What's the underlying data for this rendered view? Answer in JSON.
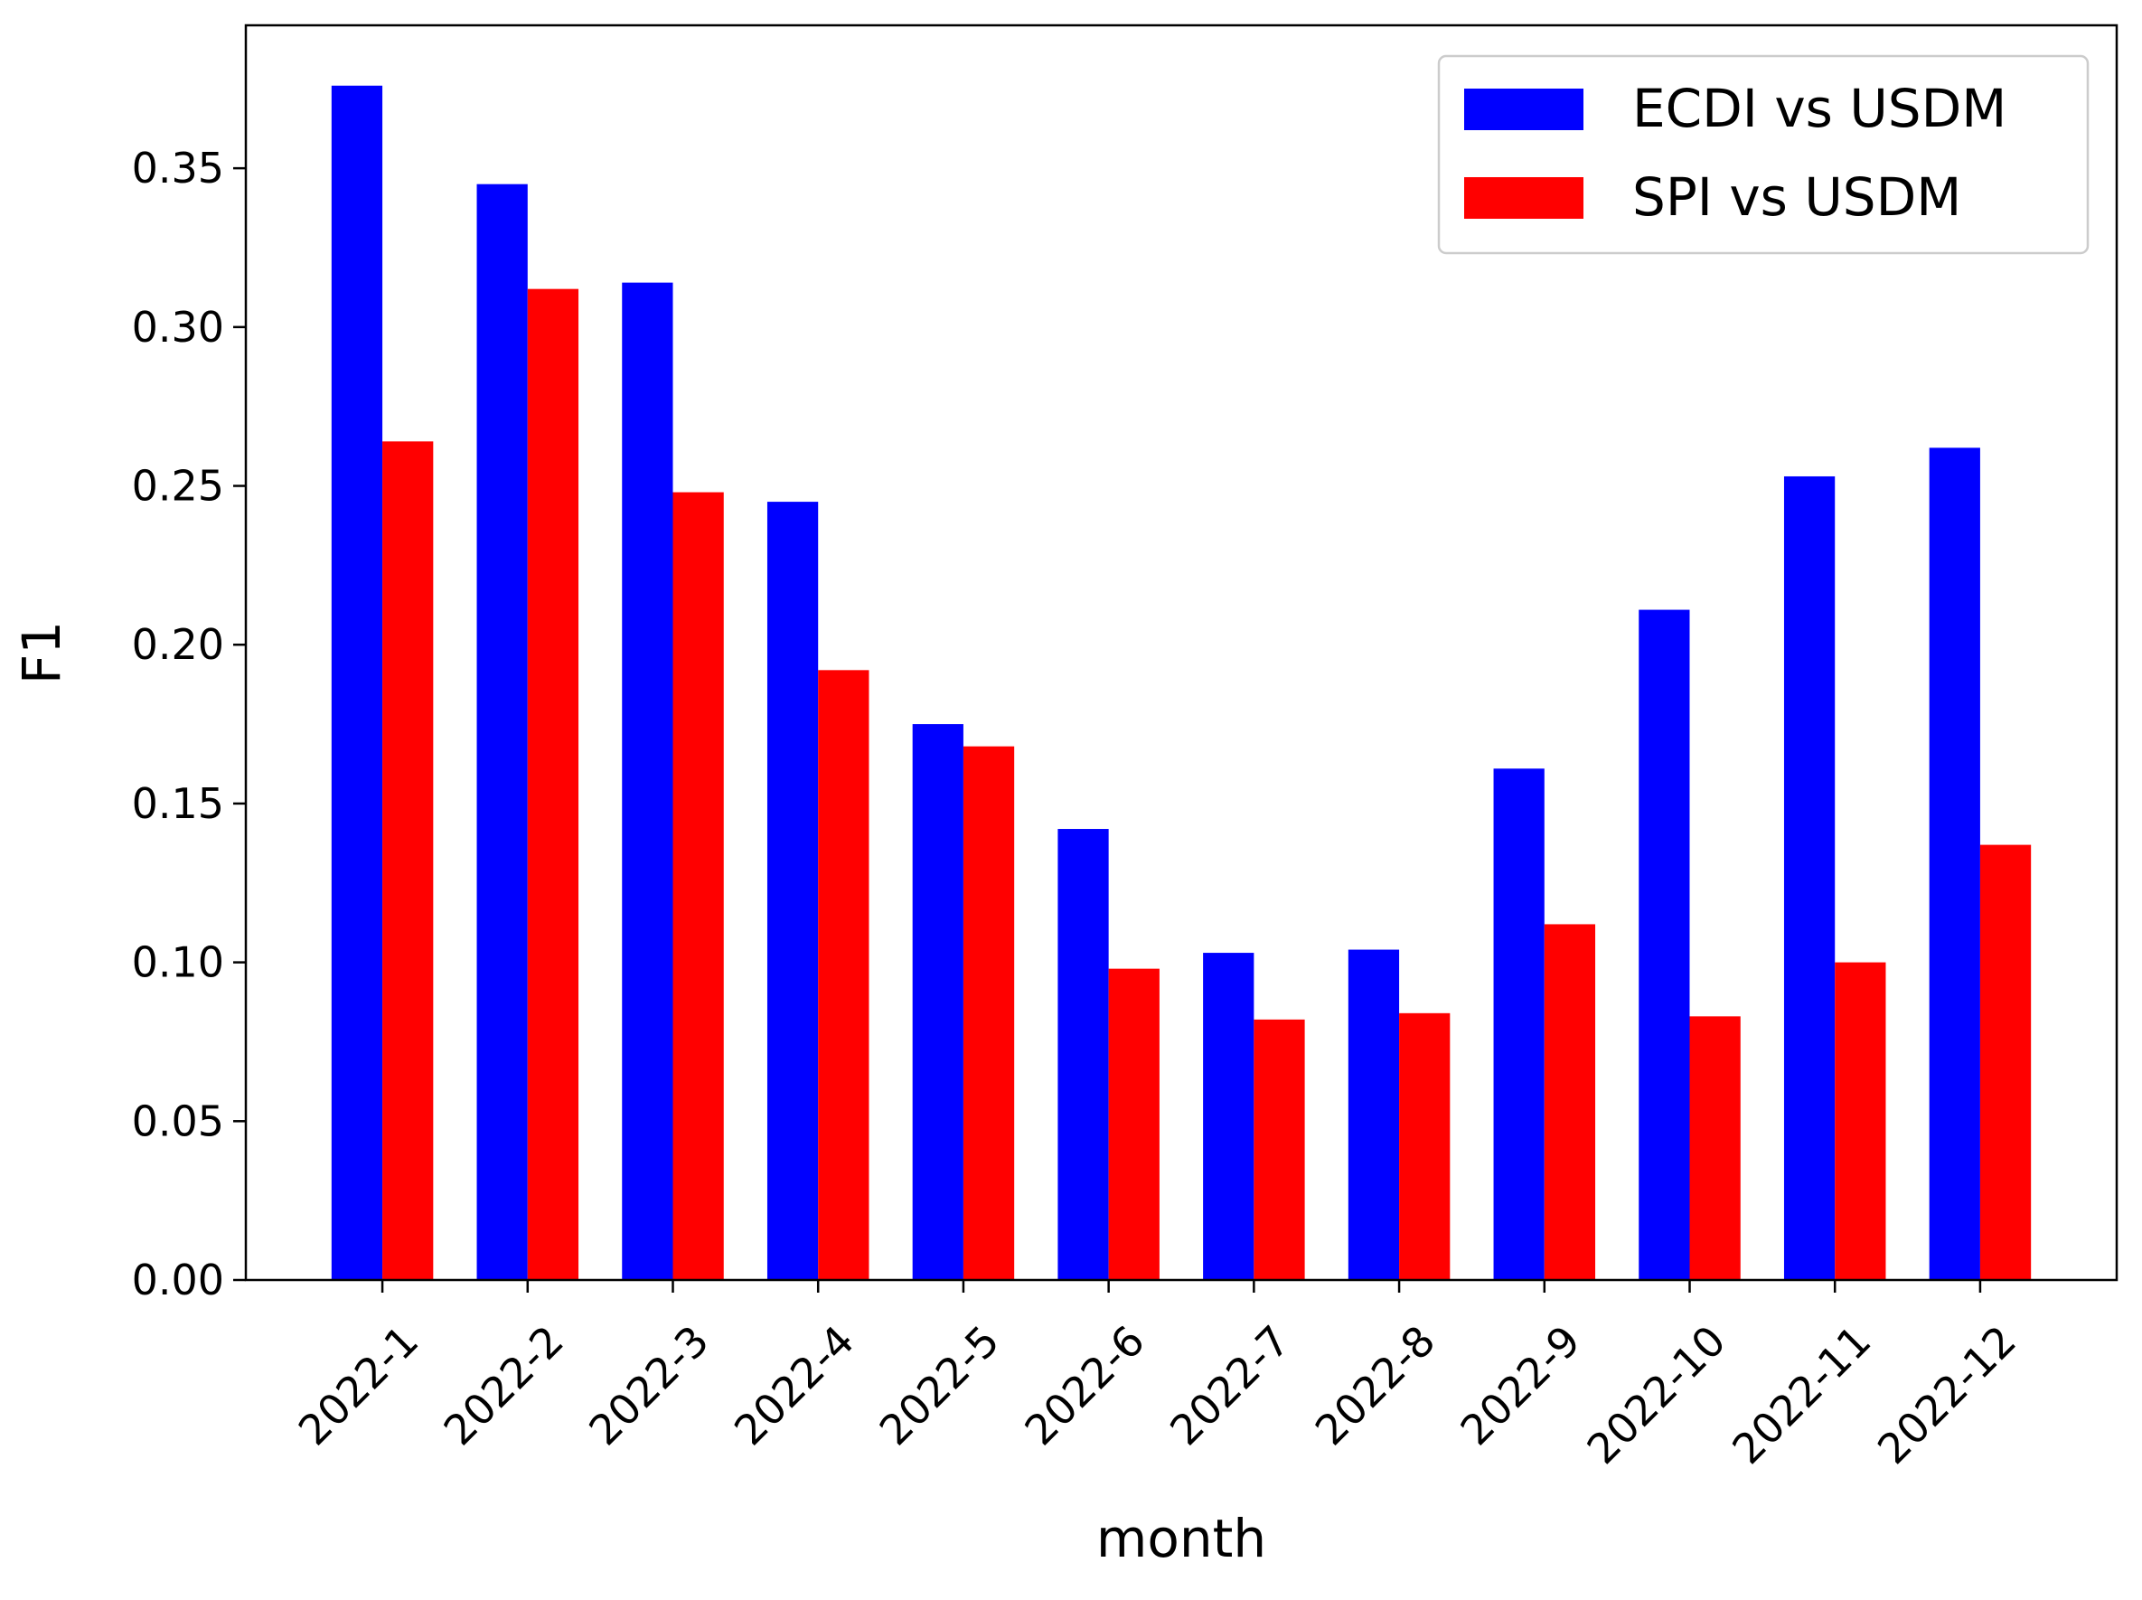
{
  "chart_data": {
    "type": "bar",
    "title": "",
    "xlabel": "month",
    "ylabel": "F1",
    "categories": [
      "2022-1",
      "2022-2",
      "2022-3",
      "2022-4",
      "2022-5",
      "2022-6",
      "2022-7",
      "2022-8",
      "2022-9",
      "2022-10",
      "2022-11",
      "2022-12"
    ],
    "series": [
      {
        "name": "ECDI vs USDM",
        "color": "#0000ff",
        "values": [
          0.376,
          0.345,
          0.314,
          0.245,
          0.175,
          0.142,
          0.103,
          0.104,
          0.161,
          0.211,
          0.253,
          0.262
        ]
      },
      {
        "name": "SPI vs USDM",
        "color": "#ff0000",
        "values": [
          0.264,
          0.312,
          0.248,
          0.192,
          0.168,
          0.098,
          0.082,
          0.084,
          0.112,
          0.083,
          0.1,
          0.137
        ]
      }
    ],
    "ylim": [
      0,
      0.395
    ],
    "yticks": [
      "0.00",
      "0.05",
      "0.10",
      "0.15",
      "0.20",
      "0.25",
      "0.30",
      "0.35"
    ],
    "grid": false,
    "legend_position": "top-right"
  }
}
